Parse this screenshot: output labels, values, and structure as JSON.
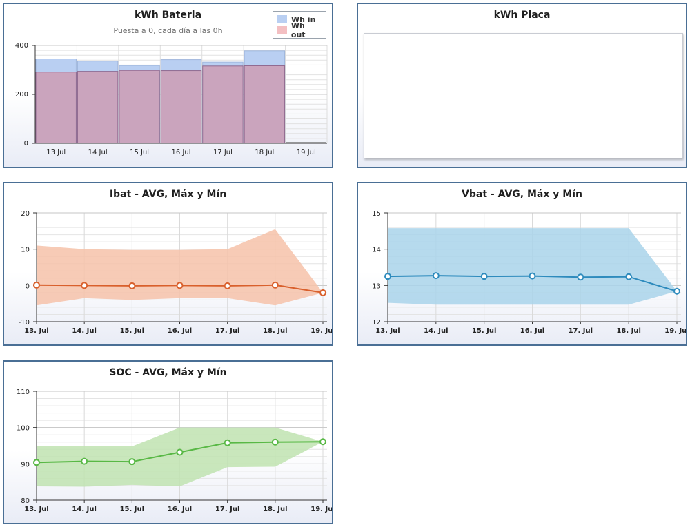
{
  "panels": {
    "bateria": {
      "title": "kWh Bateria",
      "subtitle": "Puesta a 0, cada día a las 0h"
    },
    "placa": {
      "title": "kWh Placa"
    },
    "ibat": {
      "title": "Ibat - AVG, Máx y Mín"
    },
    "vbat": {
      "title": "Vbat - AVG, Máx y Mín"
    },
    "soc": {
      "title": "SOC - AVG, Máx y Mín"
    }
  },
  "colors": {
    "wh_in": "#b9cff2",
    "wh_out": "#f3bfc2",
    "ibat_line": "#d9602c",
    "ibat_band": "#f6c2a9",
    "vbat_line": "#2e8bbd",
    "vbat_band": "#a9d4ea",
    "soc_line": "#58b845",
    "soc_band": "#bfe3b0"
  },
  "chart_data": [
    {
      "id": "bateria",
      "type": "bar",
      "categories": [
        "13 Jul",
        "14 Jul",
        "15 Jul",
        "16 Jul",
        "17 Jul",
        "18 Jul",
        "19 Jul"
      ],
      "series": [
        {
          "name": "Wh in",
          "values": [
            345,
            336,
            318,
            342,
            332,
            378,
            0
          ]
        },
        {
          "name": "Wh out",
          "values": [
            291,
            294,
            298,
            297,
            316,
            317,
            0
          ]
        }
      ],
      "yticks": [
        0,
        200,
        400
      ],
      "ylim": [
        0,
        400
      ],
      "legend": "top-right"
    },
    {
      "id": "placa",
      "type": "bar",
      "categories": [],
      "series": []
    },
    {
      "id": "ibat",
      "type": "line",
      "x": [
        "13. Jul",
        "14. Jul",
        "15. Jul",
        "16. Jul",
        "17. Jul",
        "18. Jul",
        "19. Jul"
      ],
      "avg": [
        0.1,
        0.0,
        -0.1,
        0.0,
        -0.1,
        0.1,
        -2.0
      ],
      "max": [
        11,
        10,
        9.8,
        9.8,
        10,
        15.5,
        -2.0
      ],
      "min": [
        -5.5,
        -3.5,
        -4,
        -3.5,
        -3.5,
        -5.5,
        -2.0
      ],
      "yticks": [
        -10,
        0,
        10,
        20
      ],
      "ylim": [
        -10,
        20
      ]
    },
    {
      "id": "vbat",
      "type": "line",
      "x": [
        "13. Jul",
        "14. Jul",
        "15. Jul",
        "16. Jul",
        "17. Jul",
        "18. Jul",
        "19. Jul"
      ],
      "avg": [
        13.25,
        13.27,
        13.25,
        13.26,
        13.23,
        13.24,
        12.84
      ],
      "max": [
        14.58,
        14.58,
        14.58,
        14.58,
        14.58,
        14.58,
        12.84
      ],
      "min": [
        12.52,
        12.47,
        12.47,
        12.47,
        12.47,
        12.47,
        12.84
      ],
      "yticks": [
        12,
        13,
        14,
        15
      ],
      "ylim": [
        12,
        15
      ]
    },
    {
      "id": "soc",
      "type": "line",
      "x": [
        "13. Jul",
        "14. Jul",
        "15. Jul",
        "16. Jul",
        "17. Jul",
        "18. Jul",
        "19. Jul"
      ],
      "avg": [
        90.4,
        90.7,
        90.6,
        93.2,
        95.8,
        96.0,
        96.1
      ],
      "max": [
        95,
        95,
        94.8,
        100,
        100,
        100,
        96.1
      ],
      "min": [
        83.8,
        83.7,
        84.2,
        83.8,
        89.1,
        89.2,
        96.1
      ],
      "yticks": [
        80,
        90,
        100,
        110
      ],
      "ylim": [
        80,
        110
      ]
    }
  ]
}
